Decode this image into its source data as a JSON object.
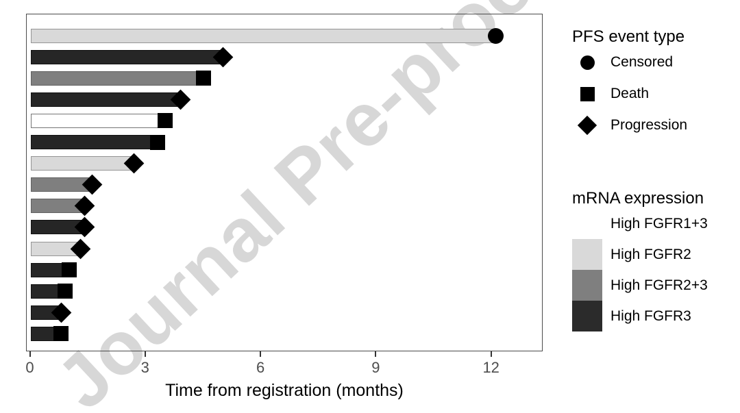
{
  "figure": {
    "watermark_text": "Journal Pre-proof",
    "watermark_color": "#d7d7d7"
  },
  "chart_data": {
    "type": "bar",
    "orientation": "horizontal",
    "title": "",
    "xlabel": "Time from registration (months)",
    "ylabel": "",
    "xlim": [
      0,
      13.4
    ],
    "x_ticks": [
      0,
      3,
      6,
      9,
      12
    ],
    "grid": false,
    "legend_position": "right",
    "bars": [
      {
        "patient": 1,
        "months": 12.1,
        "group": "High FGFR2",
        "event": "Censored"
      },
      {
        "patient": 2,
        "months": 5.0,
        "group": "High FGFR3",
        "event": "Progression"
      },
      {
        "patient": 3,
        "months": 4.5,
        "group": "High FGFR2+3",
        "event": "Death"
      },
      {
        "patient": 4,
        "months": 3.9,
        "group": "High FGFR3",
        "event": "Progression"
      },
      {
        "patient": 5,
        "months": 3.5,
        "group": "High FGFR1+3",
        "event": "Death"
      },
      {
        "patient": 6,
        "months": 3.3,
        "group": "High FGFR3",
        "event": "Death"
      },
      {
        "patient": 7,
        "months": 2.7,
        "group": "High FGFR2",
        "event": "Progression"
      },
      {
        "patient": 8,
        "months": 1.6,
        "group": "High FGFR2+3",
        "event": "Progression"
      },
      {
        "patient": 9,
        "months": 1.4,
        "group": "High FGFR2+3",
        "event": "Progression"
      },
      {
        "patient": 10,
        "months": 1.4,
        "group": "High FGFR3",
        "event": "Progression"
      },
      {
        "patient": 11,
        "months": 1.3,
        "group": "High FGFR2",
        "event": "Progression"
      },
      {
        "patient": 12,
        "months": 1.0,
        "group": "High FGFR3",
        "event": "Death"
      },
      {
        "patient": 13,
        "months": 0.9,
        "group": "High FGFR3",
        "event": "Death"
      },
      {
        "patient": 14,
        "months": 0.8,
        "group": "High FGFR3",
        "event": "Progression"
      },
      {
        "patient": 15,
        "months": 0.8,
        "group": "High FGFR3",
        "event": "Death"
      }
    ],
    "group_colors": {
      "High FGFR1+3": {
        "fill": "#ffffff",
        "border": "#757575"
      },
      "High FGFR2": {
        "fill": "#d9d9d9",
        "border": "#949494"
      },
      "High FGFR2+3": {
        "fill": "#7f7f7f",
        "border": "#616161"
      },
      "High FGFR3": {
        "fill": "#262626",
        "border": "#111111"
      }
    },
    "marker_color": "#000000"
  },
  "legend_event": {
    "title": "PFS event type",
    "items": [
      {
        "label": "Censored",
        "marker": "circle"
      },
      {
        "label": "Death",
        "marker": "square"
      },
      {
        "label": "Progression",
        "marker": "diamond"
      }
    ]
  },
  "legend_expression": {
    "title": "mRNA expression",
    "items": [
      {
        "label": "High FGFR1+3",
        "color": "#ffffff"
      },
      {
        "label": "High FGFR2",
        "color": "#d9d9d9"
      },
      {
        "label": "High FGFR2+3",
        "color": "#7f7f7f"
      },
      {
        "label": "High FGFR3",
        "color": "#2b2b2b"
      }
    ]
  },
  "axis": {
    "tick_color": "#333333",
    "tick_label_color": "#4d4d4d"
  }
}
